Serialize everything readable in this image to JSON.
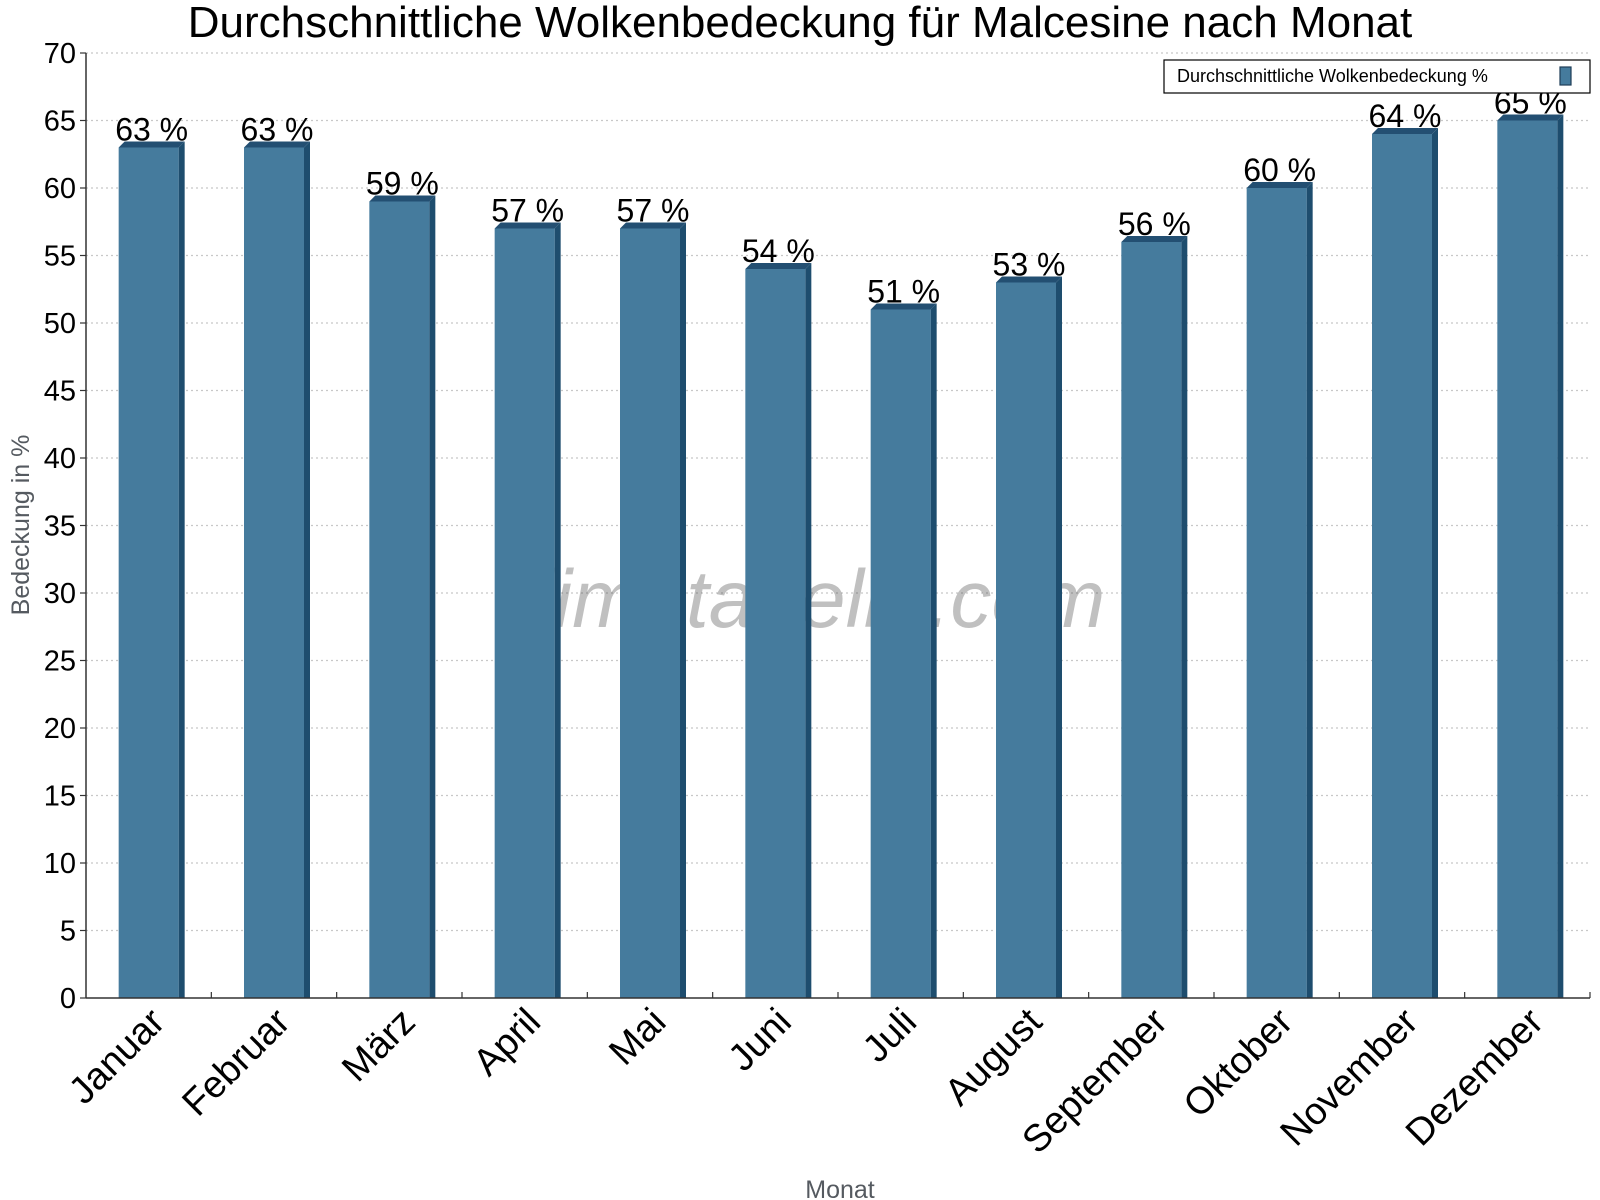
{
  "chart_data": {
    "type": "bar",
    "title": "Durchschnittliche Wolkenbedeckung für Malcesine nach Monat",
    "xlabel": "Monat",
    "ylabel": "Bedeckung in %",
    "ylim": [
      0,
      70
    ],
    "y_ticks": [
      "0",
      "5",
      "10",
      "15",
      "20",
      "25",
      "30",
      "35",
      "40",
      "45",
      "50",
      "55",
      "60",
      "65",
      "70"
    ],
    "grid": true,
    "legend_position": "top-right",
    "categories": [
      "Januar",
      "Februar",
      "März",
      "April",
      "Mai",
      "Juni",
      "Juli",
      "August",
      "September",
      "Oktober",
      "November",
      "Dezember"
    ],
    "series": [
      {
        "name": "Durchschnittliche Wolkenbedeckung %",
        "color": "#457b9d",
        "values": [
          63,
          63,
          59,
          57,
          57,
          54,
          51,
          53,
          56,
          60,
          64,
          65
        ],
        "value_labels": [
          "63 %",
          "63 %",
          "59 %",
          "57 %",
          "57 %",
          "54 %",
          "51 %",
          "53 %",
          "56 %",
          "60 %",
          "64 %",
          "65 %"
        ]
      }
    ],
    "watermark": "klimatabelle.com"
  }
}
